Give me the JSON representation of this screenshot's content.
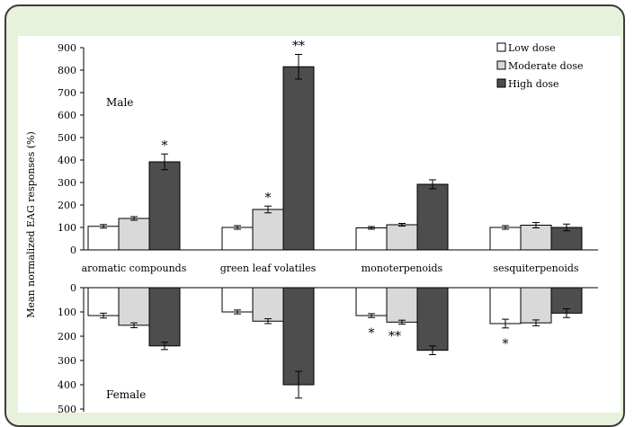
{
  "chart_data": [
    {
      "type": "bar",
      "panel": "male",
      "panel_label": "Male",
      "ylabel": "Mean normalized EAG responses (%)",
      "ylim": [
        0,
        900
      ],
      "yticks": [
        0,
        100,
        200,
        300,
        400,
        500,
        600,
        700,
        800,
        900
      ],
      "categories": [
        "aromatic compounds",
        "green leaf volatiles",
        "monoterpenoids",
        "sesquiterpenoids"
      ],
      "series": [
        {
          "name": "Low dose",
          "color": "#ffffff",
          "values": [
            105,
            100,
            98,
            100
          ],
          "errors": [
            8,
            8,
            6,
            8
          ],
          "sig": [
            "",
            "",
            "",
            ""
          ]
        },
        {
          "name": "Moderate dose",
          "color": "#d9d9d9",
          "values": [
            140,
            180,
            112,
            110
          ],
          "errors": [
            8,
            15,
            6,
            12
          ],
          "sig": [
            "",
            "*",
            "",
            ""
          ]
        },
        {
          "name": "High dose",
          "color": "#4d4d4d",
          "values": [
            392,
            815,
            292,
            100
          ],
          "errors": [
            35,
            55,
            20,
            15
          ],
          "sig": [
            "*",
            "**",
            "",
            ""
          ]
        }
      ],
      "legend_placement": "top-right"
    },
    {
      "type": "bar",
      "panel": "female",
      "panel_label": "Female",
      "orientation": "inverted",
      "ylim": [
        0,
        500
      ],
      "yticks": [
        0,
        100,
        200,
        300,
        400,
        500
      ],
      "categories": [
        "aromatic compounds",
        "green leaf volatiles",
        "monoterpenoids",
        "sesquiterpenoids"
      ],
      "series": [
        {
          "name": "Low dose",
          "color": "#ffffff",
          "values": [
            115,
            100,
            115,
            148
          ],
          "errors": [
            10,
            8,
            8,
            18
          ],
          "sig": [
            "",
            "",
            "*",
            "*"
          ]
        },
        {
          "name": "Moderate dose",
          "color": "#d9d9d9",
          "values": [
            155,
            138,
            142,
            145
          ],
          "errors": [
            10,
            10,
            8,
            12
          ],
          "sig": [
            "",
            "",
            "**",
            ""
          ]
        },
        {
          "name": "High dose",
          "color": "#4d4d4d",
          "values": [
            240,
            400,
            258,
            105
          ],
          "errors": [
            15,
            55,
            18,
            18
          ],
          "sig": [
            "",
            "",
            "",
            ""
          ]
        }
      ]
    }
  ]
}
